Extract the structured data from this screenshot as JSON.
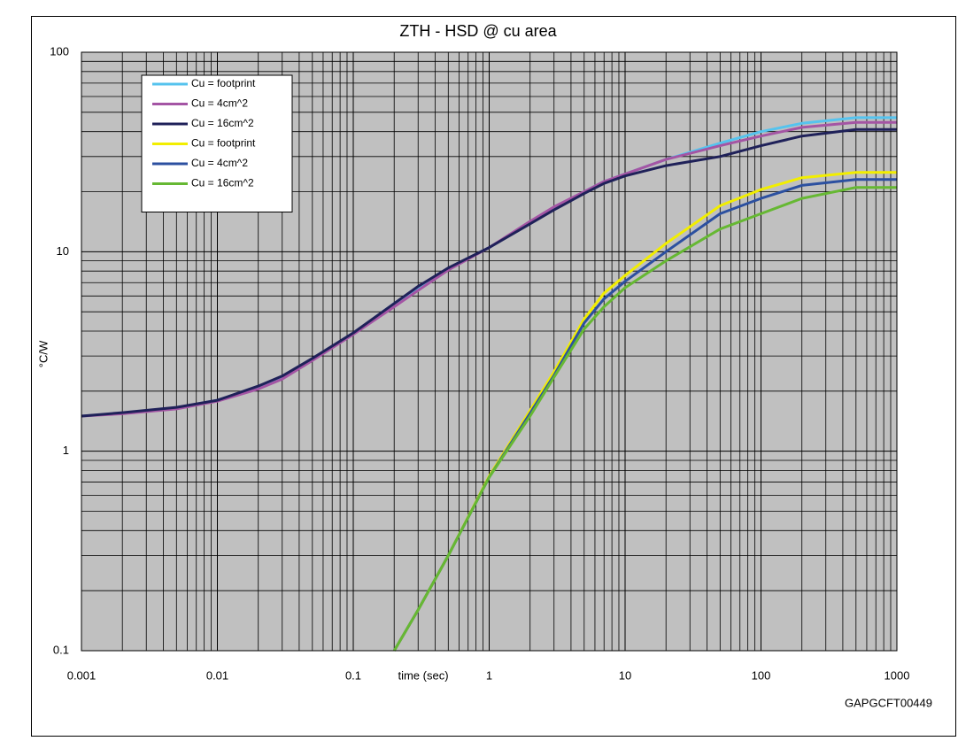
{
  "chart_data": {
    "type": "line",
    "title": "ZTH - HSD @ cu area",
    "x_label": "time (sec)",
    "y_label": "°C/W",
    "footnote": "GAPGCFT00449",
    "x": [
      0.001,
      0.002,
      0.005,
      0.01,
      0.02,
      0.03,
      0.05,
      0.1,
      0.2,
      0.3,
      0.5,
      1,
      2,
      3,
      5,
      7,
      10,
      20,
      50,
      100,
      200,
      500,
      1000
    ],
    "series": [
      {
        "name": "Cu = footprint",
        "color": "#55c3ee",
        "values": [
          1.5,
          1.55,
          1.65,
          1.8,
          2.1,
          2.35,
          2.9,
          3.9,
          5.5,
          6.6,
          8.2,
          10.5,
          14,
          16.5,
          20,
          22.5,
          24.5,
          29,
          35,
          40,
          44,
          47,
          47
        ]
      },
      {
        "name": "Cu = 4cm^2",
        "color": "#a455a4",
        "values": [
          1.5,
          1.54,
          1.63,
          1.78,
          2.05,
          2.3,
          2.85,
          3.85,
          5.3,
          6.4,
          8.1,
          10.5,
          14.2,
          16.8,
          20,
          22.5,
          24.5,
          29,
          34,
          38,
          42,
          44.5,
          44.5
        ]
      },
      {
        "name": "Cu = 16cm^2",
        "color": "#1f2159",
        "values": [
          1.5,
          1.56,
          1.66,
          1.8,
          2.12,
          2.38,
          2.92,
          3.92,
          5.5,
          6.7,
          8.3,
          10.5,
          13.8,
          16.2,
          19.6,
          22,
          24,
          27,
          30,
          34,
          38,
          41,
          41
        ]
      },
      {
        "name": "Cu = footprint",
        "color": "#f2ee00",
        "values": [
          null,
          null,
          null,
          null,
          null,
          null,
          null,
          null,
          0.1,
          0.16,
          0.3,
          0.75,
          1.6,
          2.5,
          4.6,
          6.2,
          7.6,
          11,
          17,
          20.5,
          23.5,
          25,
          25
        ]
      },
      {
        "name": "Cu = 4cm^2",
        "color": "#2c50a0",
        "values": [
          null,
          null,
          null,
          null,
          null,
          null,
          null,
          null,
          0.1,
          0.16,
          0.3,
          0.74,
          1.55,
          2.4,
          4.4,
          5.8,
          7.1,
          10,
          15.5,
          18.5,
          21.5,
          23,
          23
        ]
      },
      {
        "name": "Cu = 16cm^2",
        "color": "#66b833",
        "values": [
          null,
          null,
          null,
          null,
          null,
          null,
          null,
          null,
          0.1,
          0.16,
          0.3,
          0.74,
          1.5,
          2.35,
          4.1,
          5.3,
          6.6,
          9,
          13,
          15.5,
          18.5,
          21,
          21
        ]
      }
    ],
    "xlim": [
      0.001,
      1000
    ],
    "ylim": [
      0.1,
      100
    ],
    "xticks": [
      0.001,
      0.01,
      0.1,
      1,
      10,
      100,
      1000
    ],
    "yticks": [
      0.1,
      1,
      10,
      100
    ],
    "log_x": true,
    "log_y": true,
    "grid": true,
    "minor_grid": true,
    "legend": "upper left",
    "background": "#c0c0c0"
  }
}
